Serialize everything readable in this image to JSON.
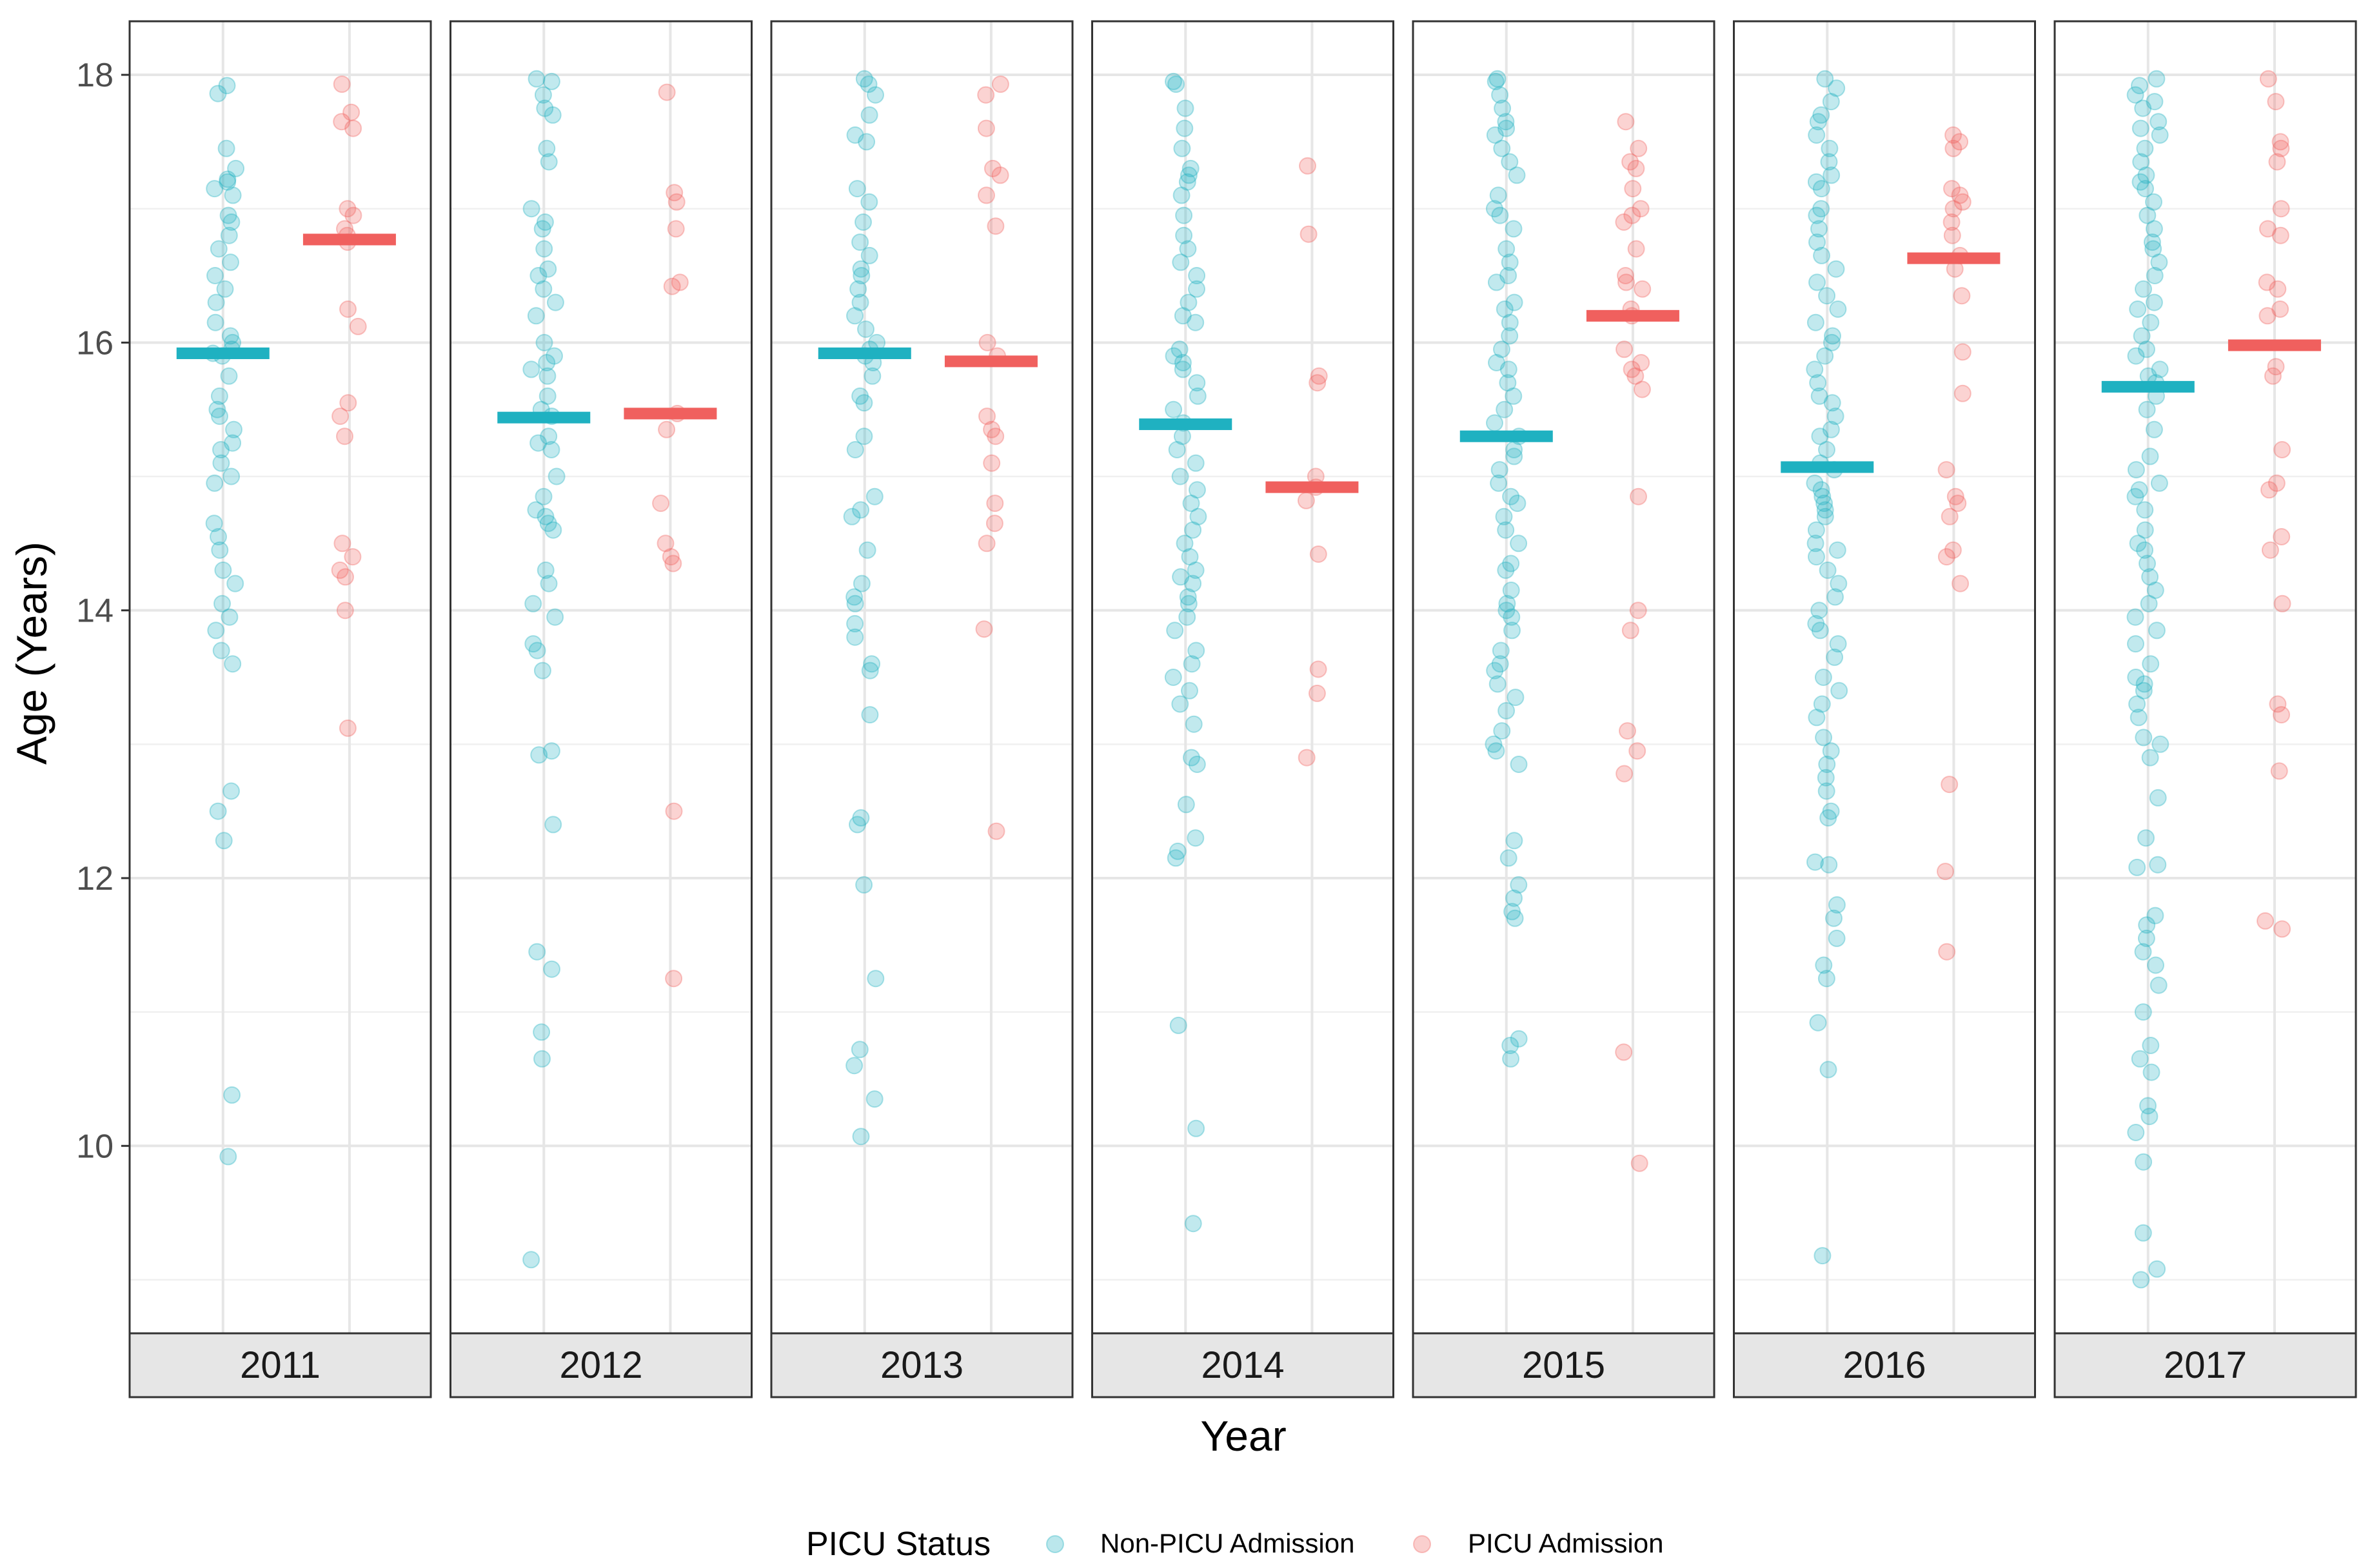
{
  "chart_data": {
    "type": "scatter",
    "subtype": "faceted jittered strip plot with mean bars",
    "title": "",
    "xlabel": "Year",
    "ylabel": "Age (Years)",
    "ylim": [
      8.6,
      18.4
    ],
    "y_ticks": [
      10,
      12,
      14,
      16,
      18
    ],
    "y_tick_labels": [
      "10",
      "12",
      "14",
      "16",
      "18"
    ],
    "grid": true,
    "legend": {
      "title": "PICU Status",
      "position": "bottom",
      "entries": [
        {
          "label": "Non-PICU Admission",
          "color": "#1fb1c1"
        },
        {
          "label": "PICU Admission",
          "color": "#f0605e"
        }
      ]
    },
    "groups": [
      "Non-PICU Admission",
      "PICU Admission"
    ],
    "facets": [
      {
        "year": "2011",
        "means": [
          15.92,
          16.77
        ],
        "points": [
          [
            17.92,
            17.86,
            17.45,
            17.3,
            17.22,
            17.2,
            17.15,
            17.1,
            16.95,
            16.9,
            16.8,
            16.7,
            16.6,
            16.5,
            16.4,
            16.3,
            16.15,
            16.05,
            16.0,
            15.95,
            15.92,
            15.9,
            15.75,
            15.6,
            15.5,
            15.45,
            15.35,
            15.25,
            15.2,
            15.1,
            15.0,
            14.95,
            14.65,
            14.55,
            14.45,
            14.3,
            14.2,
            14.05,
            13.95,
            13.85,
            13.7,
            13.6,
            12.65,
            12.5,
            12.28,
            10.38,
            9.92
          ],
          [
            17.93,
            17.72,
            17.65,
            17.6,
            17.0,
            16.95,
            16.85,
            16.8,
            16.75,
            16.25,
            16.12,
            15.55,
            15.45,
            15.3,
            14.5,
            14.4,
            14.3,
            14.25,
            14.0,
            13.12
          ]
        ]
      },
      {
        "year": "2012",
        "means": [
          15.44,
          15.47
        ],
        "points": [
          [
            17.97,
            17.95,
            17.85,
            17.75,
            17.7,
            17.45,
            17.35,
            17.0,
            16.9,
            16.85,
            16.7,
            16.55,
            16.5,
            16.4,
            16.3,
            16.2,
            16.0,
            15.9,
            15.85,
            15.8,
            15.75,
            15.6,
            15.5,
            15.45,
            15.3,
            15.25,
            15.2,
            15.0,
            14.85,
            14.75,
            14.7,
            14.65,
            14.6,
            14.3,
            14.2,
            14.05,
            13.95,
            13.75,
            13.7,
            13.55,
            12.95,
            12.92,
            12.4,
            11.45,
            11.32,
            10.85,
            10.65,
            9.15
          ],
          [
            17.87,
            17.12,
            17.05,
            16.85,
            16.45,
            16.42,
            15.47,
            15.35,
            14.8,
            14.5,
            14.4,
            14.35,
            12.5,
            11.25
          ]
        ]
      },
      {
        "year": "2013",
        "means": [
          15.92,
          15.86
        ],
        "points": [
          [
            17.97,
            17.93,
            17.85,
            17.7,
            17.55,
            17.5,
            17.15,
            17.05,
            16.9,
            16.75,
            16.65,
            16.55,
            16.5,
            16.4,
            16.3,
            16.2,
            16.1,
            16.0,
            15.95,
            15.9,
            15.85,
            15.75,
            15.6,
            15.55,
            15.3,
            15.2,
            14.85,
            14.75,
            14.7,
            14.45,
            14.2,
            14.1,
            14.05,
            13.9,
            13.8,
            13.6,
            13.55,
            13.22,
            12.45,
            12.4,
            11.95,
            11.25,
            10.72,
            10.6,
            10.35,
            10.07
          ],
          [
            17.93,
            17.85,
            17.6,
            17.3,
            17.25,
            17.1,
            16.87,
            16.0,
            15.9,
            15.45,
            15.35,
            15.3,
            15.1,
            14.8,
            14.65,
            14.5,
            13.86,
            12.35
          ]
        ]
      },
      {
        "year": "2014",
        "means": [
          15.39,
          14.92
        ],
        "points": [
          [
            17.95,
            17.93,
            17.75,
            17.6,
            17.45,
            17.3,
            17.25,
            17.2,
            17.1,
            16.95,
            16.8,
            16.7,
            16.6,
            16.5,
            16.4,
            16.3,
            16.2,
            16.15,
            15.95,
            15.9,
            15.85,
            15.8,
            15.7,
            15.6,
            15.5,
            15.4,
            15.3,
            15.2,
            15.1,
            15.0,
            14.9,
            14.8,
            14.7,
            14.6,
            14.5,
            14.4,
            14.3,
            14.25,
            14.2,
            14.1,
            14.05,
            13.95,
            13.85,
            13.7,
            13.6,
            13.5,
            13.4,
            13.3,
            13.15,
            12.9,
            12.85,
            12.55,
            12.3,
            12.2,
            12.15,
            10.9,
            10.13,
            9.42
          ],
          [
            17.32,
            16.81,
            15.75,
            15.7,
            15.0,
            14.92,
            14.82,
            14.42,
            13.56,
            13.38,
            12.9
          ]
        ]
      },
      {
        "year": "2015",
        "means": [
          15.3,
          16.2
        ],
        "points": [
          [
            17.97,
            17.95,
            17.85,
            17.75,
            17.65,
            17.6,
            17.55,
            17.45,
            17.35,
            17.25,
            17.1,
            17.0,
            16.95,
            16.85,
            16.7,
            16.6,
            16.5,
            16.45,
            16.3,
            16.25,
            16.15,
            16.05,
            15.95,
            15.85,
            15.8,
            15.7,
            15.6,
            15.5,
            15.4,
            15.3,
            15.2,
            15.15,
            15.05,
            14.95,
            14.85,
            14.8,
            14.7,
            14.6,
            14.5,
            14.35,
            14.3,
            14.15,
            14.05,
            14.0,
            13.95,
            13.85,
            13.7,
            13.6,
            13.55,
            13.45,
            13.35,
            13.25,
            13.1,
            13.0,
            12.95,
            12.85,
            12.28,
            12.15,
            11.95,
            11.85,
            11.75,
            11.7,
            10.8,
            10.75,
            10.65
          ],
          [
            17.65,
            17.45,
            17.35,
            17.3,
            17.15,
            17.0,
            16.95,
            16.9,
            16.7,
            16.5,
            16.45,
            16.4,
            16.25,
            16.2,
            15.95,
            15.85,
            15.8,
            15.75,
            15.65,
            14.85,
            14.0,
            13.85,
            13.1,
            12.95,
            12.78,
            10.7,
            9.87
          ]
        ]
      },
      {
        "year": "2016",
        "means": [
          15.07,
          16.63
        ],
        "points": [
          [
            17.97,
            17.9,
            17.8,
            17.7,
            17.65,
            17.55,
            17.45,
            17.35,
            17.25,
            17.2,
            17.15,
            17.0,
            16.95,
            16.85,
            16.75,
            16.65,
            16.55,
            16.45,
            16.35,
            16.25,
            16.15,
            16.05,
            16.0,
            15.9,
            15.8,
            15.7,
            15.6,
            15.55,
            15.45,
            15.35,
            15.3,
            15.2,
            15.1,
            15.05,
            14.95,
            14.9,
            14.85,
            14.8,
            14.75,
            14.7,
            14.6,
            14.5,
            14.45,
            14.4,
            14.3,
            14.2,
            14.1,
            14.0,
            13.9,
            13.85,
            13.75,
            13.65,
            13.5,
            13.4,
            13.3,
            13.2,
            13.05,
            12.95,
            12.85,
            12.75,
            12.65,
            12.5,
            12.45,
            12.12,
            12.1,
            11.8,
            11.7,
            11.55,
            11.35,
            11.25,
            10.92,
            10.57,
            9.18
          ],
          [
            17.55,
            17.5,
            17.45,
            17.15,
            17.1,
            17.05,
            17.0,
            16.9,
            16.8,
            16.65,
            16.55,
            16.35,
            15.93,
            15.62,
            15.05,
            14.85,
            14.8,
            14.7,
            14.45,
            14.4,
            14.2,
            12.7,
            12.05,
            11.45
          ]
        ]
      },
      {
        "year": "2017",
        "means": [
          15.67,
          15.98
        ],
        "points": [
          [
            17.97,
            17.92,
            17.85,
            17.8,
            17.75,
            17.65,
            17.6,
            17.55,
            17.45,
            17.35,
            17.25,
            17.2,
            17.15,
            17.05,
            16.95,
            16.85,
            16.75,
            16.7,
            16.6,
            16.5,
            16.4,
            16.3,
            16.25,
            16.15,
            16.05,
            15.95,
            15.9,
            15.8,
            15.75,
            15.7,
            15.6,
            15.5,
            15.35,
            15.15,
            15.05,
            14.95,
            14.9,
            14.85,
            14.75,
            14.6,
            14.5,
            14.45,
            14.35,
            14.25,
            14.15,
            14.05,
            13.95,
            13.85,
            13.75,
            13.6,
            13.5,
            13.45,
            13.4,
            13.3,
            13.2,
            13.05,
            13.0,
            12.9,
            12.6,
            12.3,
            12.1,
            12.08,
            11.72,
            11.65,
            11.55,
            11.45,
            11.35,
            11.2,
            11.0,
            10.75,
            10.65,
            10.55,
            10.3,
            10.22,
            10.1,
            9.88,
            9.35,
            9.08,
            9.0
          ],
          [
            17.97,
            17.8,
            17.5,
            17.45,
            17.35,
            17.0,
            16.85,
            16.8,
            16.45,
            16.4,
            16.25,
            16.2,
            15.82,
            15.75,
            15.2,
            14.95,
            14.9,
            14.55,
            14.45,
            14.05,
            13.3,
            13.22,
            12.8,
            11.68,
            11.62
          ]
        ]
      }
    ]
  }
}
